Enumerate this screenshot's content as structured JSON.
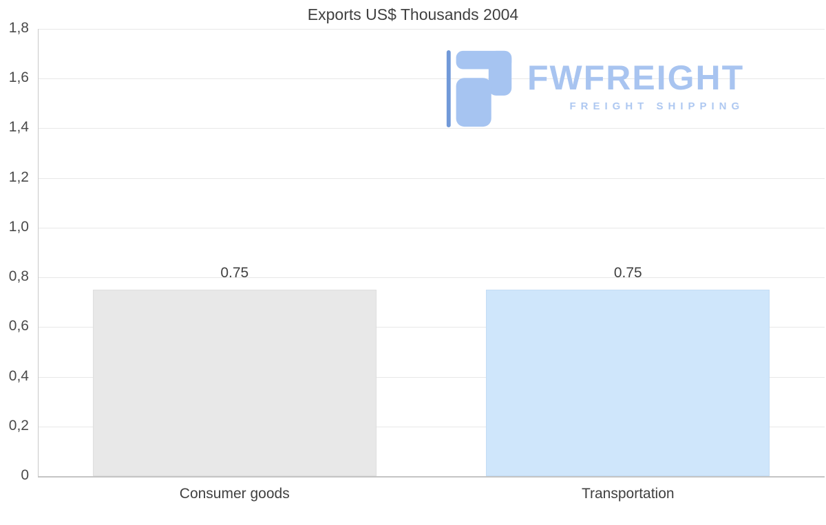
{
  "title": "Exports US$ Thousands 2004",
  "watermark": {
    "brand": "FWFREIGHT",
    "tagline": "FREIGHT SHIPPING",
    "brand_color": "#a8c4f0",
    "icon_color": "#a6c4f1",
    "icon_accent_color": "#7199d8"
  },
  "chart_data": {
    "type": "bar",
    "title": "Exports US$ Thousands 2004",
    "categories": [
      "Consumer goods",
      "Transportation"
    ],
    "values": [
      0.75,
      0.75
    ],
    "data_labels": [
      "0.75",
      "0.75"
    ],
    "bar_colors": [
      "#e8e8e8",
      "#cfe6fb"
    ],
    "bar_border_colors": [
      "#dedede",
      "#c3dcf4"
    ],
    "ylim": [
      0,
      1.8
    ],
    "ytick_step": 0.2,
    "ytick_labels": [
      "0",
      "0,2",
      "0,4",
      "0,6",
      "0,8",
      "1,0",
      "1,2",
      "1,4",
      "1,6",
      "1,8"
    ],
    "xlabel": "",
    "ylabel": "",
    "grid": "horizontal",
    "legend": "none"
  }
}
